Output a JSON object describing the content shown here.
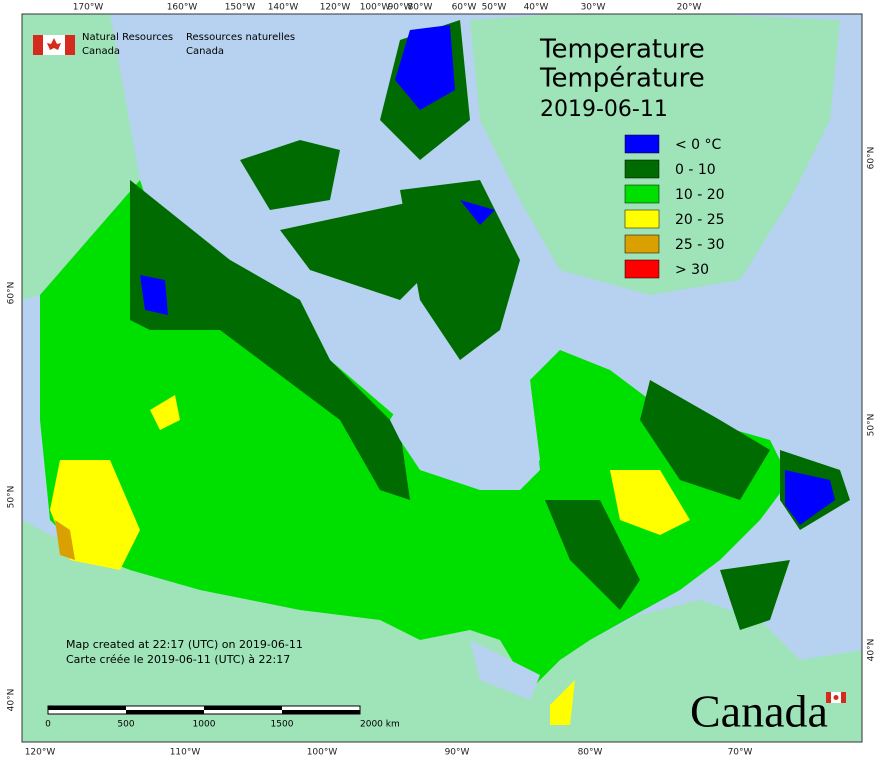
{
  "header": {
    "department_en": [
      "Natural Resources",
      "Canada"
    ],
    "department_fr": [
      "Ressources naturelles",
      "Canada"
    ]
  },
  "title": {
    "lines": [
      "Temperature",
      "Température",
      "2019-06-11"
    ]
  },
  "legend": {
    "items": [
      {
        "label": "< 0 °C",
        "color": "#0000ff"
      },
      {
        "label": "0 - 10",
        "color": "#006b00"
      },
      {
        "label": "10 - 20",
        "color": "#00e000"
      },
      {
        "label": "20 - 25",
        "color": "#ffff00"
      },
      {
        "label": "25 - 30",
        "color": "#d9a000"
      },
      {
        "label": "> 30",
        "color": "#ff0000"
      }
    ]
  },
  "graticule": {
    "top": [
      "170°W",
      "160°W",
      "150°W",
      "140°W",
      "120°W",
      "100°W",
      "90°W",
      "80°W",
      "60°W",
      "50°W",
      "40°W",
      "30°W",
      "20°W"
    ],
    "bottom": [
      "120°W",
      "110°W",
      "100°W",
      "90°W",
      "80°W",
      "70°W"
    ],
    "left": [
      "60°N",
      "50°N",
      "40°N"
    ],
    "right": [
      "60°N",
      "50°N",
      "40°N"
    ]
  },
  "footer": {
    "lines": [
      "Map created at 22:17 (UTC) on 2019-06-11",
      "Carte créée le 2019-06-11 (UTC) à 22:17"
    ]
  },
  "scale_bar": {
    "labels": [
      "0",
      "500",
      "1000",
      "1500",
      "2000 km"
    ]
  },
  "wordmark": "Canada"
}
